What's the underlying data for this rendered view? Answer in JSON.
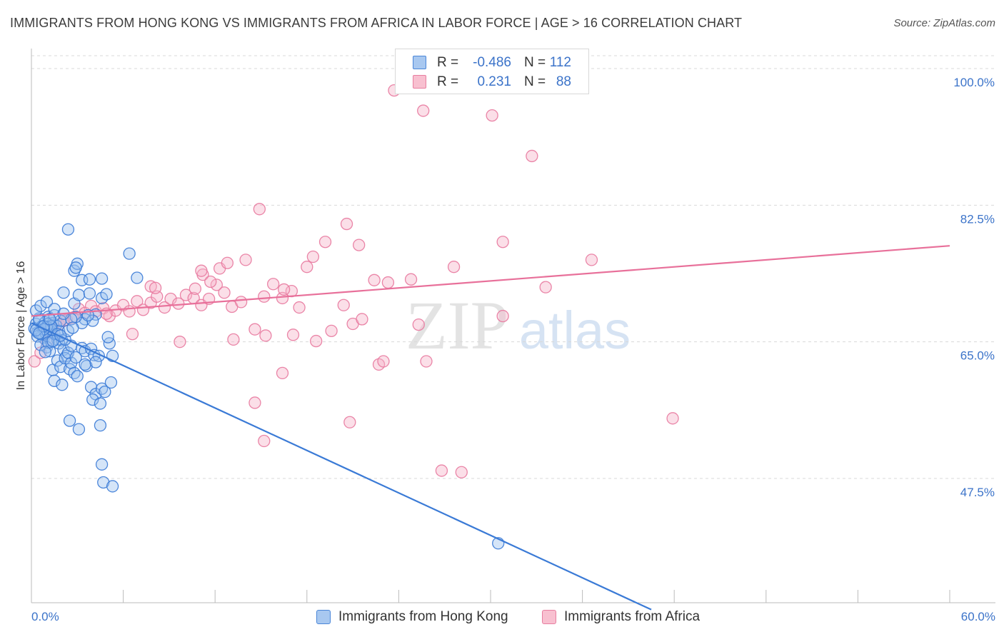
{
  "title": "IMMIGRANTS FROM HONG KONG VS IMMIGRANTS FROM AFRICA IN LABOR FORCE | AGE > 16 CORRELATION CHART",
  "source": "Source: ZipAtlas.com",
  "watermark": {
    "zip": "ZIP",
    "atlas": "atlas"
  },
  "legend_top": {
    "rows": [
      {
        "r_label": "R =",
        "r_value": "-0.486",
        "n_label": "N =",
        "n_value": "112",
        "color": "#a8c8f0",
        "border": "#4a86d8"
      },
      {
        "r_label": "R =",
        "r_value": "0.231",
        "n_label": "N =",
        "n_value": "88",
        "color": "#f8c0d0",
        "border": "#e87ea0"
      }
    ]
  },
  "legend_bottom": [
    {
      "label": "Immigrants from Hong Kong",
      "color": "#a8c8f0",
      "border": "#4a86d8"
    },
    {
      "label": "Immigrants from Africa",
      "color": "#f8c0d0",
      "border": "#e87ea0"
    }
  ],
  "colors": {
    "blue": "#3a7ad6",
    "pink": "#e8709a",
    "grid": "#d9d9d9",
    "tick_label": "#3b73c9"
  },
  "chart_data": {
    "type": "scatter",
    "title": "IMMIGRANTS FROM HONG KONG VS IMMIGRANTS FROM AFRICA IN LABOR FORCE | AGE > 16 CORRELATION CHART",
    "xlabel": "",
    "ylabel": "In Labor Force | Age > 16",
    "xlim": [
      0,
      60
    ],
    "ylim": [
      30,
      102
    ],
    "x_tick_labels": [
      "0.0%",
      "60.0%"
    ],
    "y_ticks": [
      47.5,
      65.0,
      82.5,
      100.0
    ],
    "y_tick_labels": [
      "47.5%",
      "65.0%",
      "82.5%",
      "100.0%"
    ],
    "grid": "horizontal dashed",
    "legend_position": "top-center",
    "series": [
      {
        "name": "Immigrants from Hong Kong",
        "r": -0.486,
        "n": 112,
        "trend": [
          [
            0.0,
            67.4
          ],
          [
            40.5,
            30.7
          ]
        ],
        "points": [
          [
            0.3,
            67.3
          ],
          [
            0.4,
            66.2
          ],
          [
            0.5,
            68.0
          ],
          [
            0.6,
            66.0
          ],
          [
            0.7,
            67.0
          ],
          [
            0.8,
            65.5
          ],
          [
            0.9,
            67.5
          ],
          [
            1.0,
            66.5
          ],
          [
            1.1,
            68.2
          ],
          [
            1.2,
            66.8
          ],
          [
            1.3,
            65.0
          ],
          [
            1.4,
            67.4
          ],
          [
            1.5,
            66.0
          ],
          [
            1.6,
            67.1
          ],
          [
            1.7,
            65.3
          ],
          [
            1.8,
            66.4
          ],
          [
            1.9,
            67.7
          ],
          [
            2.0,
            65.2
          ],
          [
            0.2,
            66.7
          ],
          [
            0.5,
            67.8
          ],
          [
            0.7,
            65.9
          ],
          [
            0.9,
            66.2
          ],
          [
            1.1,
            67.3
          ],
          [
            1.3,
            66.6
          ],
          [
            1.5,
            68.4
          ],
          [
            1.0,
            64.3
          ],
          [
            1.2,
            63.8
          ],
          [
            1.8,
            64.8
          ],
          [
            2.1,
            64.0
          ],
          [
            2.3,
            63.2
          ],
          [
            1.4,
            61.4
          ],
          [
            1.7,
            62.6
          ],
          [
            1.9,
            61.8
          ],
          [
            2.2,
            62.9
          ],
          [
            2.5,
            61.5
          ],
          [
            2.6,
            62.3
          ],
          [
            2.8,
            61.0
          ],
          [
            3.0,
            60.6
          ],
          [
            1.5,
            60.0
          ],
          [
            2.0,
            59.5
          ],
          [
            2.4,
            63.6
          ],
          [
            2.6,
            64.5
          ],
          [
            2.9,
            63.0
          ],
          [
            3.3,
            64.2
          ],
          [
            3.5,
            63.8
          ],
          [
            3.9,
            64.1
          ],
          [
            4.1,
            63.3
          ],
          [
            4.4,
            63.2
          ],
          [
            5.1,
            64.8
          ],
          [
            3.6,
            61.9
          ],
          [
            3.9,
            59.2
          ],
          [
            4.2,
            58.3
          ],
          [
            4.6,
            59.0
          ],
          [
            4.0,
            57.6
          ],
          [
            4.5,
            57.1
          ],
          [
            4.8,
            58.6
          ],
          [
            5.2,
            59.8
          ],
          [
            2.5,
            54.9
          ],
          [
            3.1,
            53.8
          ],
          [
            4.5,
            54.3
          ],
          [
            4.6,
            49.3
          ],
          [
            4.7,
            47.0
          ],
          [
            5.3,
            46.5
          ],
          [
            0.3,
            69.0
          ],
          [
            0.6,
            69.6
          ],
          [
            1.0,
            70.1
          ],
          [
            1.5,
            69.2
          ],
          [
            2.1,
            71.3
          ],
          [
            2.8,
            69.9
          ],
          [
            3.1,
            71.0
          ],
          [
            3.8,
            71.2
          ],
          [
            4.6,
            70.6
          ],
          [
            4.2,
            68.5
          ],
          [
            3.5,
            67.9
          ],
          [
            4.0,
            67.7
          ],
          [
            3.3,
            67.4
          ],
          [
            2.9,
            68.2
          ],
          [
            2.6,
            67.9
          ],
          [
            3.7,
            68.4
          ],
          [
            2.1,
            68.6
          ],
          [
            5.0,
            65.6
          ],
          [
            5.3,
            63.2
          ],
          [
            1.0,
            66.9
          ],
          [
            1.3,
            67.0
          ],
          [
            0.8,
            66.6
          ],
          [
            0.4,
            65.7
          ],
          [
            0.6,
            64.6
          ],
          [
            1.7,
            66.0
          ],
          [
            2.2,
            65.3
          ],
          [
            1.1,
            64.9
          ],
          [
            2.4,
            66.4
          ],
          [
            0.9,
            63.7
          ],
          [
            1.4,
            65.1
          ],
          [
            1.9,
            65.8
          ],
          [
            2.7,
            66.8
          ],
          [
            0.3,
            66.5
          ],
          [
            0.8,
            67.0
          ],
          [
            1.2,
            67.9
          ],
          [
            0.5,
            66.1
          ],
          [
            2.8,
            74.1
          ],
          [
            3.3,
            72.9
          ],
          [
            3.8,
            73.0
          ],
          [
            6.4,
            76.3
          ],
          [
            4.6,
            73.1
          ],
          [
            6.9,
            73.2
          ],
          [
            2.4,
            79.4
          ],
          [
            3.0,
            75.0
          ],
          [
            2.9,
            74.5
          ],
          [
            4.9,
            71.1
          ],
          [
            3.5,
            62.1
          ],
          [
            4.2,
            62.4
          ],
          [
            30.5,
            39.2
          ]
        ]
      },
      {
        "name": "Immigrants from Africa",
        "r": 0.231,
        "n": 88,
        "trend": [
          [
            0.0,
            68.3
          ],
          [
            60.0,
            77.3
          ]
        ],
        "points": [
          [
            0.2,
            62.5
          ],
          [
            0.6,
            63.6
          ],
          [
            1.0,
            65.0
          ],
          [
            1.4,
            66.6
          ],
          [
            1.8,
            67.2
          ],
          [
            2.3,
            67.8
          ],
          [
            2.7,
            68.1
          ],
          [
            3.1,
            69.2
          ],
          [
            3.5,
            68.7
          ],
          [
            3.9,
            69.6
          ],
          [
            4.2,
            68.9
          ],
          [
            4.7,
            69.3
          ],
          [
            5.1,
            68.3
          ],
          [
            5.5,
            69.0
          ],
          [
            6.0,
            69.7
          ],
          [
            6.4,
            68.9
          ],
          [
            6.9,
            70.2
          ],
          [
            7.3,
            69.1
          ],
          [
            7.8,
            70.0
          ],
          [
            8.2,
            70.8
          ],
          [
            8.7,
            69.4
          ],
          [
            9.1,
            70.5
          ],
          [
            9.6,
            69.9
          ],
          [
            10.1,
            71.0
          ],
          [
            10.6,
            70.6
          ],
          [
            11.1,
            69.7
          ],
          [
            11.6,
            70.5
          ],
          [
            12.1,
            72.3
          ],
          [
            12.6,
            71.3
          ],
          [
            13.1,
            69.5
          ],
          [
            13.7,
            70.1
          ],
          [
            7.8,
            72.1
          ],
          [
            8.1,
            71.9
          ],
          [
            10.7,
            71.8
          ],
          [
            11.2,
            73.6
          ],
          [
            11.7,
            72.7
          ],
          [
            12.3,
            74.4
          ],
          [
            11.1,
            74.1
          ],
          [
            12.8,
            75.1
          ],
          [
            14.0,
            75.5
          ],
          [
            15.2,
            70.8
          ],
          [
            15.8,
            72.4
          ],
          [
            16.4,
            70.6
          ],
          [
            17.0,
            71.5
          ],
          [
            17.5,
            69.4
          ],
          [
            18.0,
            74.6
          ],
          [
            18.4,
            75.9
          ],
          [
            19.2,
            77.8
          ],
          [
            20.4,
            69.7
          ],
          [
            21.0,
            67.3
          ],
          [
            21.6,
            67.9
          ],
          [
            22.4,
            72.9
          ],
          [
            23.3,
            72.6
          ],
          [
            14.9,
            82.0
          ],
          [
            16.5,
            71.7
          ],
          [
            18.6,
            65.1
          ],
          [
            14.6,
            66.6
          ],
          [
            15.3,
            65.8
          ],
          [
            17.1,
            65.9
          ],
          [
            20.6,
            80.1
          ],
          [
            21.4,
            77.4
          ],
          [
            22.7,
            62.1
          ],
          [
            23.0,
            62.5
          ],
          [
            23.7,
            97.2
          ],
          [
            24.8,
            73.0
          ],
          [
            25.8,
            62.5
          ],
          [
            25.6,
            94.6
          ],
          [
            27.6,
            74.6
          ],
          [
            30.8,
            77.8
          ],
          [
            30.1,
            94.0
          ],
          [
            30.8,
            68.3
          ],
          [
            32.7,
            88.8
          ],
          [
            33.6,
            72.0
          ],
          [
            36.6,
            75.5
          ],
          [
            41.9,
            55.2
          ],
          [
            28.1,
            48.3
          ],
          [
            26.8,
            48.5
          ],
          [
            25.3,
            67.2
          ],
          [
            2.1,
            67.7
          ],
          [
            4.9,
            68.6
          ],
          [
            6.6,
            66.0
          ],
          [
            9.7,
            65.0
          ],
          [
            13.2,
            65.3
          ],
          [
            14.6,
            57.2
          ],
          [
            15.2,
            52.3
          ],
          [
            16.4,
            61.0
          ],
          [
            19.6,
            66.4
          ],
          [
            20.8,
            54.7
          ]
        ]
      }
    ]
  }
}
